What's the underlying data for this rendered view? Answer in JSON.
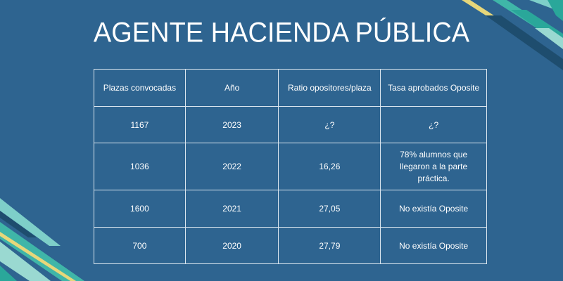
{
  "title": "AGENTE HACIENDA PÚBLICA",
  "colors": {
    "background": "#2e6490",
    "accent": "#ecf23a",
    "text": "#ffffff"
  },
  "table": {
    "headers": [
      "Plazas convocadas",
      "Año",
      "Ratio opositores/plaza",
      "Tasa aprobados Oposite"
    ],
    "rows": [
      [
        "1167",
        "2023",
        "¿?",
        "¿?"
      ],
      [
        "1036",
        "2022",
        "16,26",
        "78% alumnos que llegaron a la parte práctica."
      ],
      [
        "1600",
        "2021",
        "27,05",
        "No existía Oposite"
      ],
      [
        "700",
        "2020",
        "27,79",
        "No existía Oposite"
      ]
    ]
  }
}
